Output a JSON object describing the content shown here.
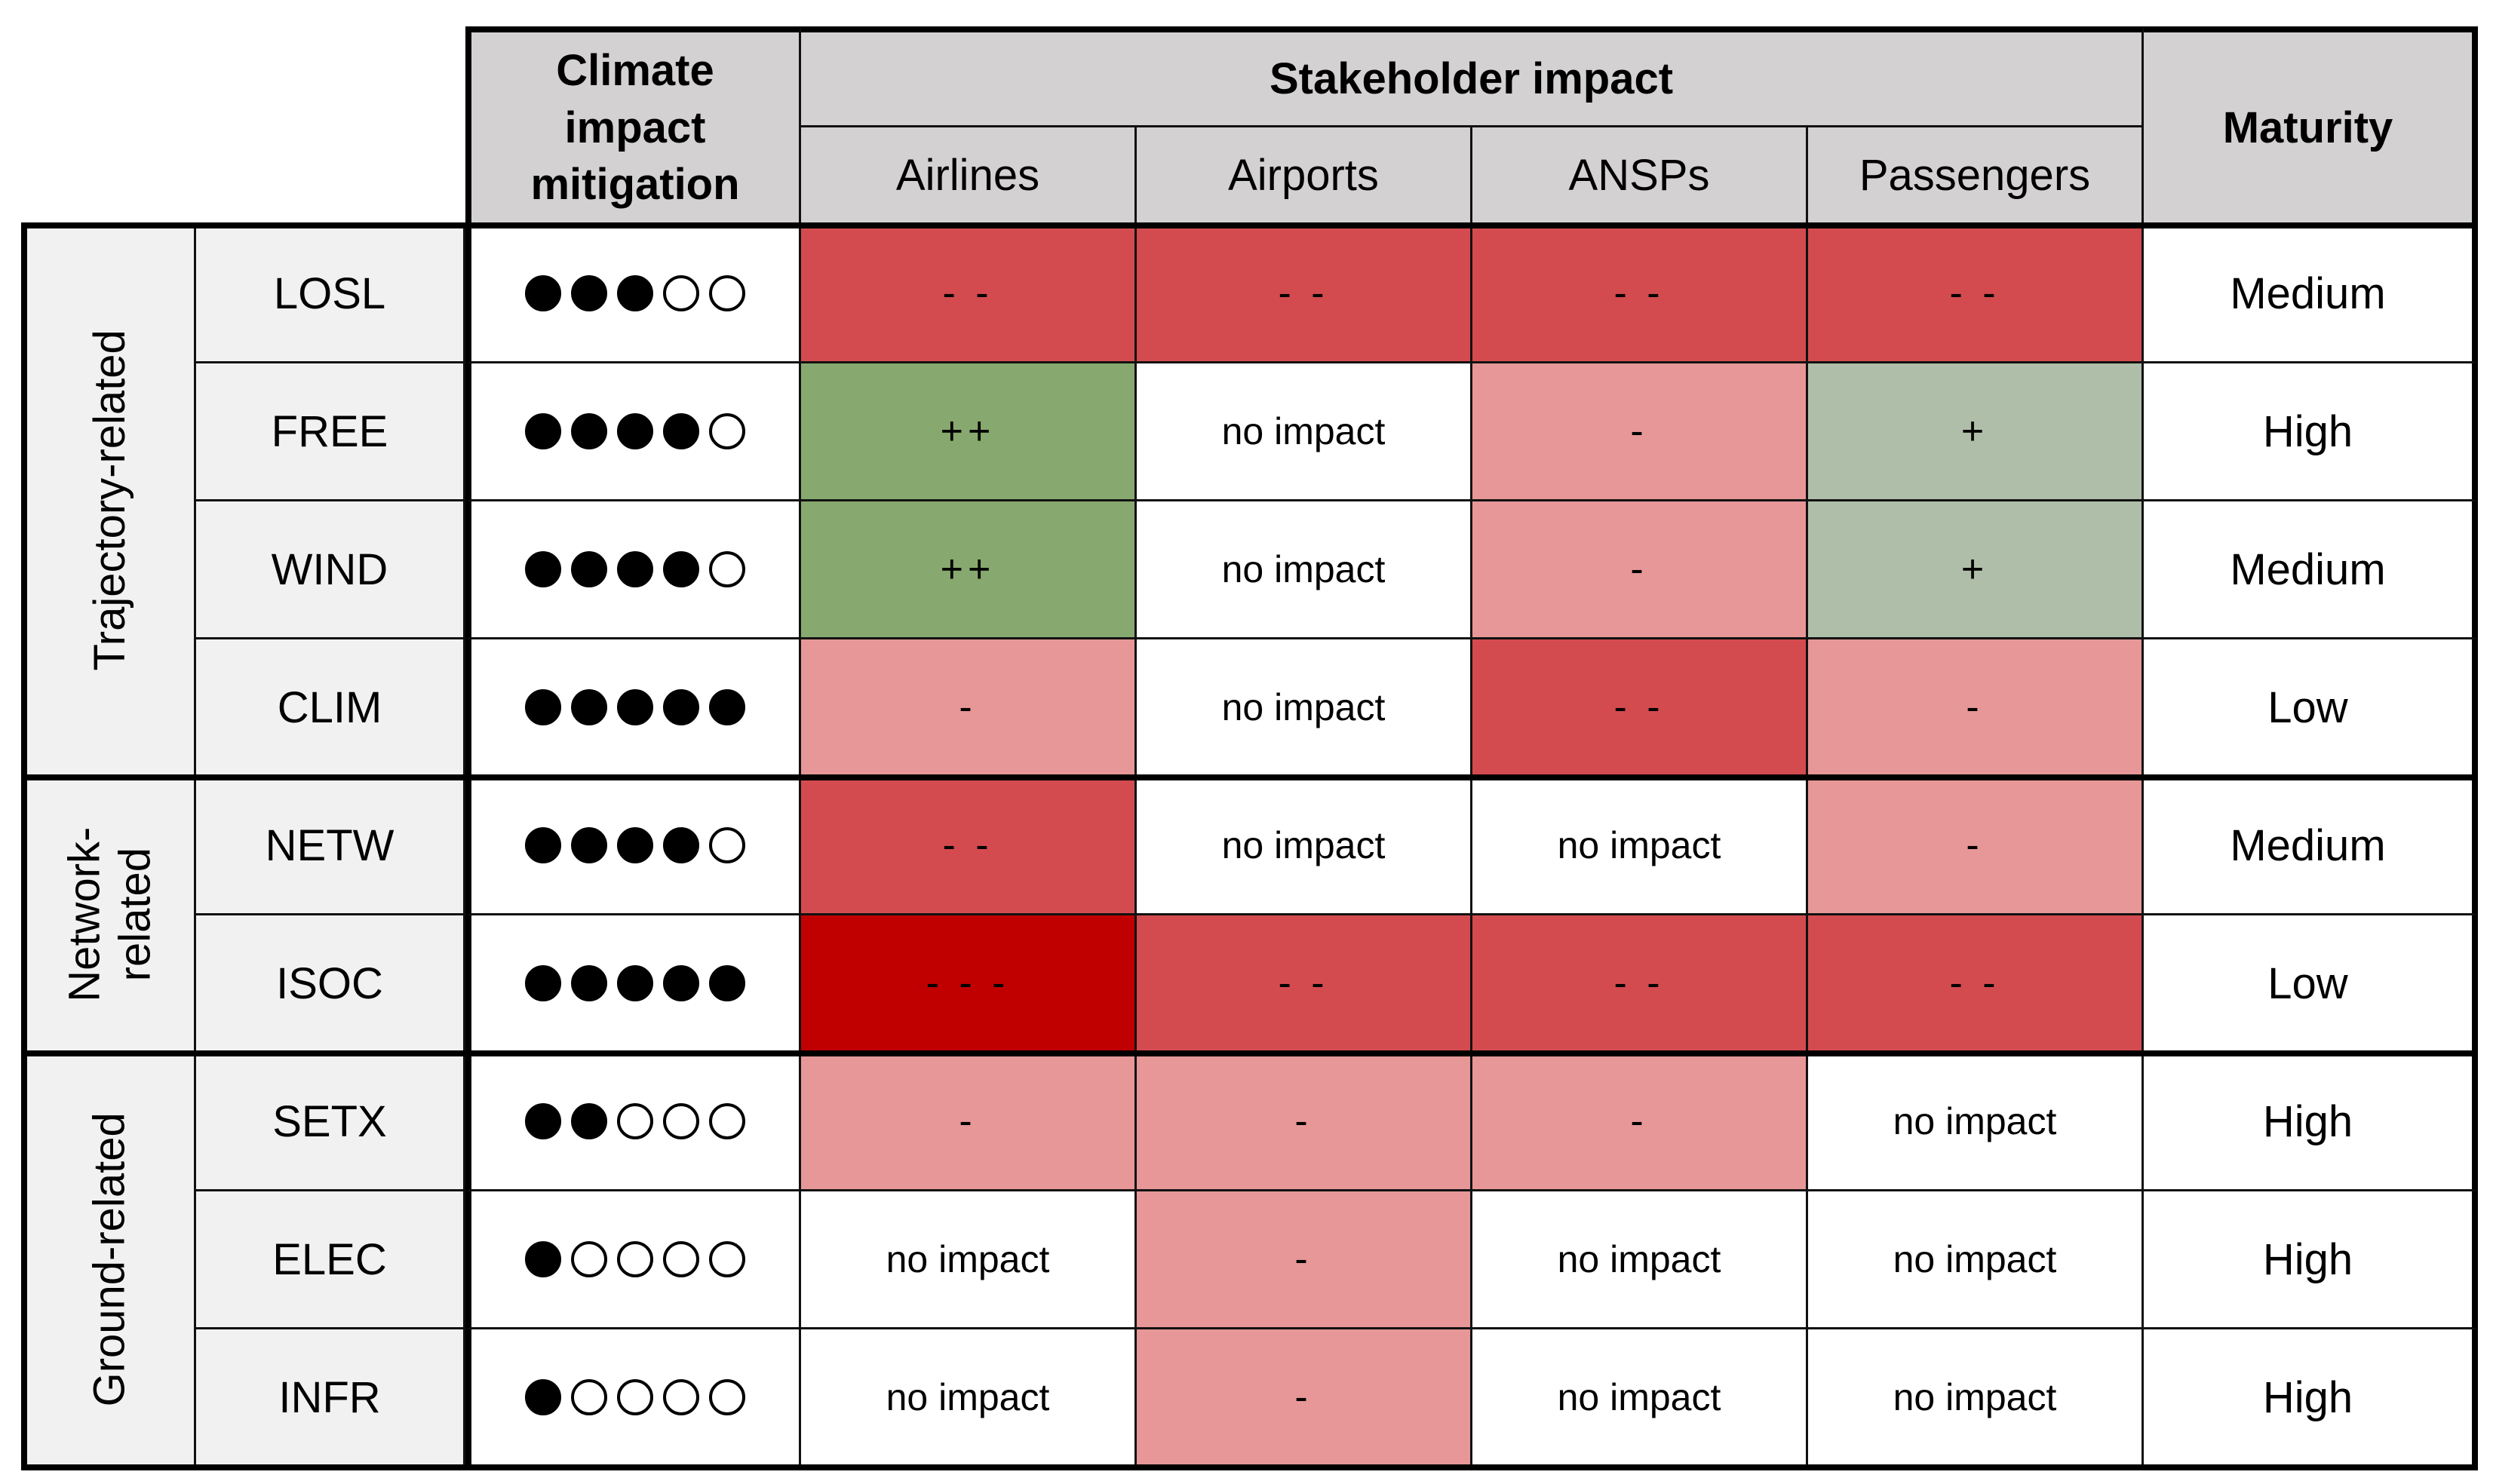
{
  "header": {
    "climate": "Climate impact mitigation",
    "stakeholder": "Stakeholder impact",
    "maturity": "Maturity",
    "stakeholders": [
      "Airlines",
      "Airports",
      "ANSPs",
      "Passengers"
    ]
  },
  "groups": [
    {
      "label": "Trajectory-related",
      "rows": 4
    },
    {
      "label": "Network-\nrelated",
      "rows": 2
    },
    {
      "label": "Ground-related",
      "rows": 3
    }
  ],
  "chart_data": {
    "type": "table",
    "columns": [
      "Climate impact mitigation",
      "Airlines",
      "Airports",
      "ANSPs",
      "Passengers",
      "Maturity"
    ],
    "climate_scale_max": 5,
    "rows": [
      {
        "code": "LOSL",
        "climate": 3,
        "impacts": [
          "- -",
          "- -",
          "- -",
          "- -"
        ],
        "maturity": "Medium"
      },
      {
        "code": "FREE",
        "climate": 4,
        "impacts": [
          "++",
          "no impact",
          "-",
          "+"
        ],
        "maturity": "High"
      },
      {
        "code": "WIND",
        "climate": 4,
        "impacts": [
          "++",
          "no impact",
          "-",
          "+"
        ],
        "maturity": "Medium"
      },
      {
        "code": "CLIM",
        "climate": 5,
        "impacts": [
          "-",
          "no impact",
          "- -",
          "-"
        ],
        "maturity": "Low"
      },
      {
        "code": "NETW",
        "climate": 4,
        "impacts": [
          "- -",
          "no impact",
          "no impact",
          "-"
        ],
        "maturity": "Medium"
      },
      {
        "code": "ISOC",
        "climate": 5,
        "impacts": [
          "- - -",
          "- -",
          "- -",
          "- -"
        ],
        "maturity": "Low"
      },
      {
        "code": "SETX",
        "climate": 2,
        "impacts": [
          "-",
          "-",
          "-",
          "no impact"
        ],
        "maturity": "High"
      },
      {
        "code": "ELEC",
        "climate": 1,
        "impacts": [
          "no impact",
          "-",
          "no impact",
          "no impact"
        ],
        "maturity": "High"
      },
      {
        "code": "INFR",
        "climate": 1,
        "impacts": [
          "no impact",
          "-",
          "no impact",
          "no impact"
        ],
        "maturity": "High"
      }
    ],
    "impact_colors": {
      "++": "#87a96f",
      "+": "#afbea8",
      "no impact": "#ffffff",
      "-": "#e79797",
      "- -": "#d44b4f",
      "- - -": "#c00000"
    },
    "header_color": "#d3d1d2",
    "label_color": "#f1f1f1"
  }
}
